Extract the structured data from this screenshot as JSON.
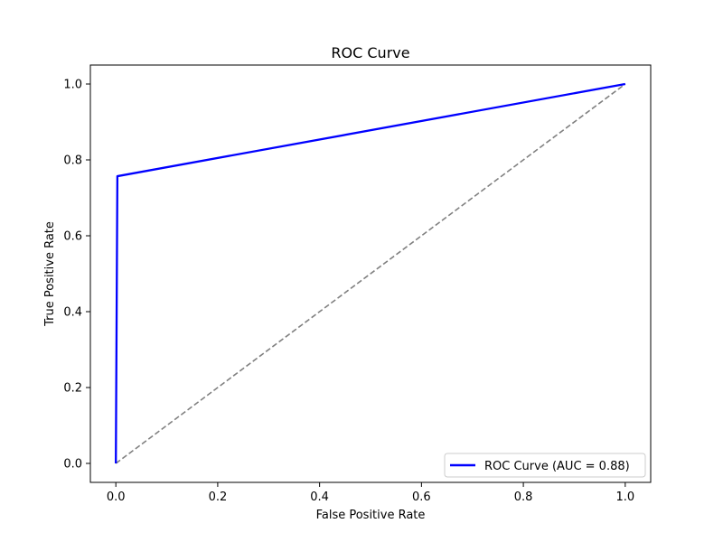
{
  "chart_data": {
    "type": "line",
    "title": "ROC Curve",
    "xlabel": "False Positive Rate",
    "ylabel": "True Positive Rate",
    "xlim": [
      -0.05,
      1.05
    ],
    "ylim": [
      -0.05,
      1.05
    ],
    "x_ticks": [
      "0.0",
      "0.2",
      "0.4",
      "0.6",
      "0.8",
      "1.0"
    ],
    "y_ticks": [
      "0.0",
      "0.2",
      "0.4",
      "0.6",
      "0.8",
      "1.0"
    ],
    "grid": false,
    "legend_position": "lower-right",
    "series": [
      {
        "name": "ROC Curve (AUC = 0.88)",
        "color": "#0000ff",
        "style": "solid",
        "x": [
          0.0,
          0.003,
          1.0
        ],
        "y": [
          0.0,
          0.757,
          1.0
        ]
      },
      {
        "color": "#808080",
        "style": "dashed",
        "x": [
          0.0,
          1.0
        ],
        "y": [
          0.0,
          1.0
        ]
      }
    ]
  }
}
